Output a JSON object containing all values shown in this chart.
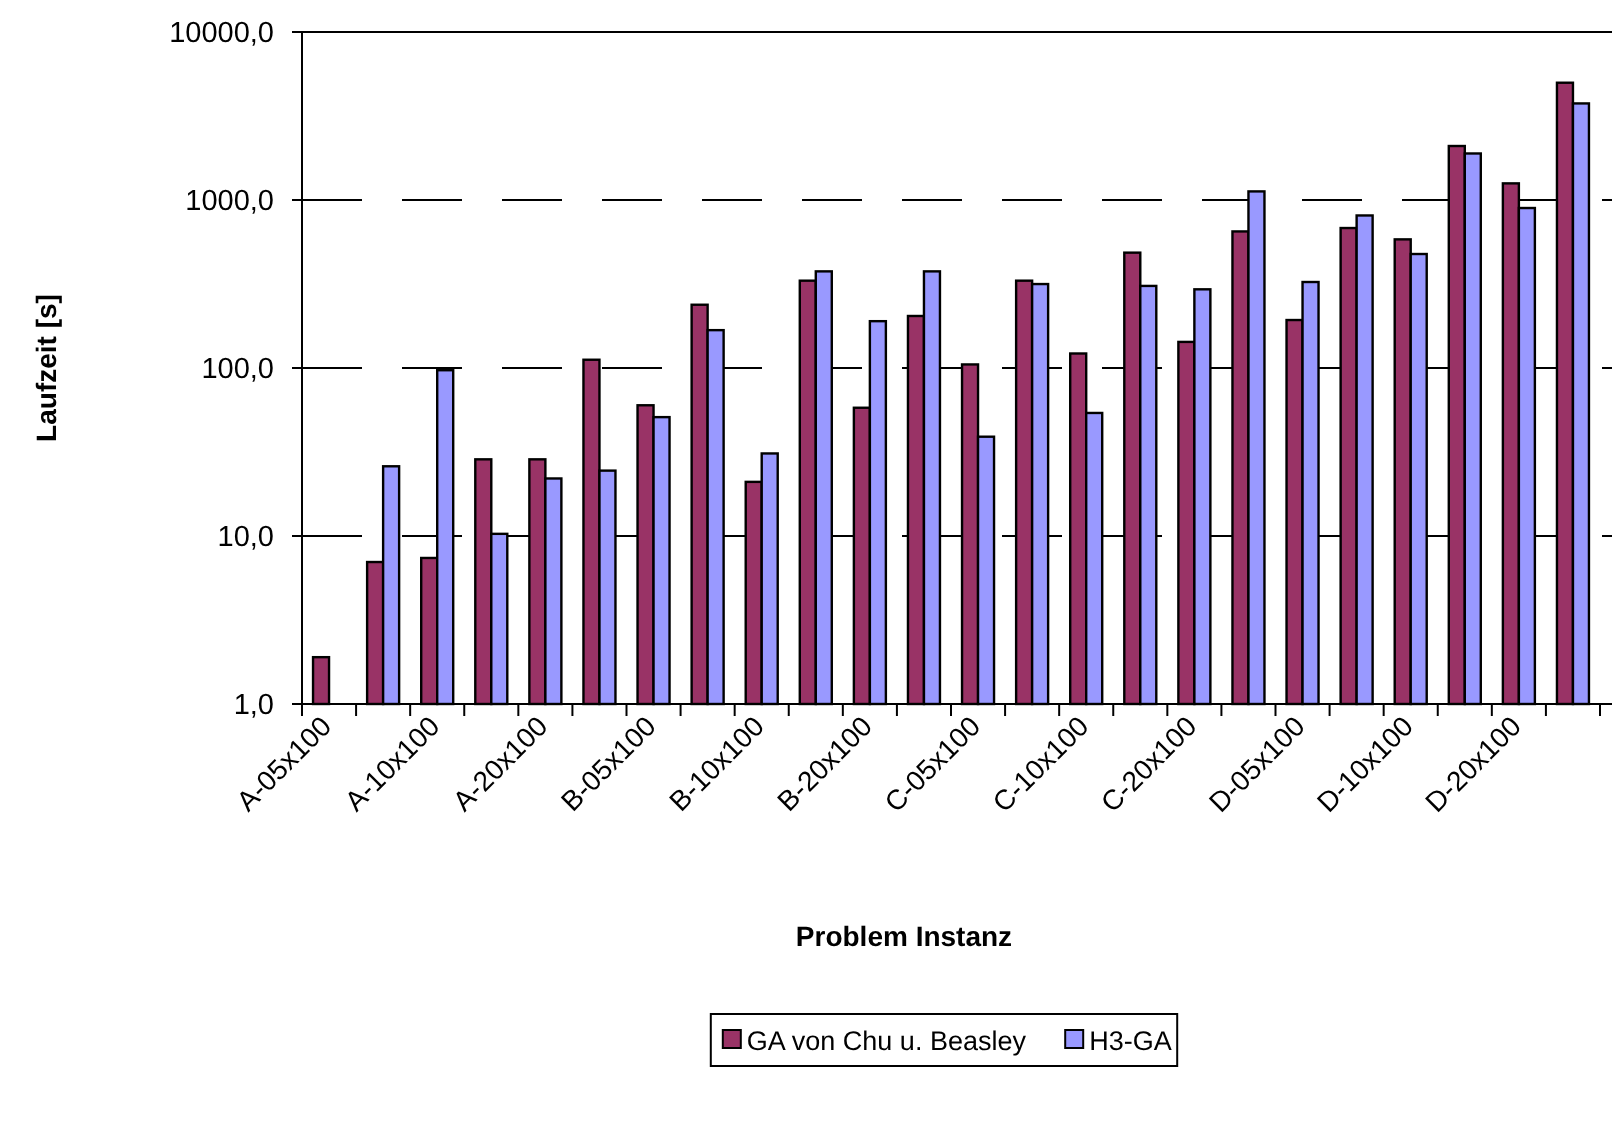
{
  "chart_data": {
    "type": "bar",
    "xlabel": "Problem Instanz",
    "ylabel": "Laufzeit [s]",
    "log": "y",
    "ylim": [
      1,
      10000
    ],
    "yticks": [
      {
        "value": 1,
        "label": "1,0"
      },
      {
        "value": 10,
        "label": "10,0"
      },
      {
        "value": 100,
        "label": "100,0"
      },
      {
        "value": 1000,
        "label": "1000,0"
      },
      {
        "value": 10000,
        "label": "10000,0"
      }
    ],
    "grid": "y",
    "line_style": "dashed",
    "legend": "bottom",
    "categories": [
      "A-05x100",
      null,
      "A-10x100",
      null,
      "A-20x100",
      null,
      "B-05x100",
      null,
      "B-10x100",
      null,
      "B-20x100",
      null,
      "C-05x100",
      null,
      "C-10x100",
      null,
      "C-20x100",
      null,
      "D-05x100",
      null,
      "D-10x100",
      null,
      "D-20x100",
      null
    ],
    "series": [
      {
        "name": "GA von Chu u. Beasley",
        "color": "#993366",
        "values": [
          1.9,
          7.0,
          7.4,
          28.6,
          28.6,
          112,
          60,
          238,
          21,
          331,
          58,
          204,
          105,
          331,
          122,
          486,
          143,
          650,
          193,
          681,
          583,
          2096,
          1256,
          4990
        ]
      },
      {
        "name": "H3-GA",
        "color": "#9999ff",
        "values": [
          null,
          26,
          97,
          10.3,
          22,
          24.5,
          51,
          168,
          31,
          376,
          190,
          376,
          39,
          316,
          54,
          308,
          294,
          1125,
          325,
          809,
          477,
          1892,
          896,
          3757
        ]
      }
    ]
  }
}
